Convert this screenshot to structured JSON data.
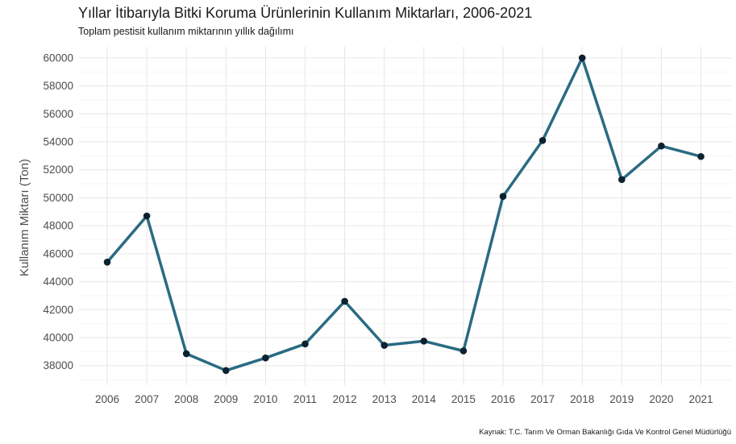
{
  "chart_data": {
    "type": "line",
    "title": "Yıllar İtibarıyla Bitki Koruma Ürünlerinin Kullanım Miktarları, 2006-2021",
    "subtitle": "Toplam pestisit kullanım miktarının yıllık dağılımı",
    "caption": "Kaynak: T.C. Tarım Ve Orman Bakanlığı Gıda Ve Kontrol Genel Müdürlüğü",
    "xlabel": "",
    "ylabel": "Kullanım Miktarı (Ton)",
    "x": [
      2006,
      2007,
      2008,
      2009,
      2010,
      2011,
      2012,
      2013,
      2014,
      2015,
      2016,
      2017,
      2018,
      2019,
      2020,
      2021
    ],
    "values": [
      45400,
      48700,
      38850,
      37650,
      38550,
      39550,
      42600,
      39450,
      39750,
      39050,
      50100,
      54100,
      60000,
      51300,
      53700,
      52950
    ],
    "ylim": [
      36600,
      60800
    ],
    "yticks": [
      38000,
      40000,
      42000,
      44000,
      46000,
      48000,
      50000,
      52000,
      54000,
      56000,
      58000,
      60000
    ],
    "grid": true,
    "line_color": "#2a6b82",
    "point_color": "#0c2230"
  }
}
